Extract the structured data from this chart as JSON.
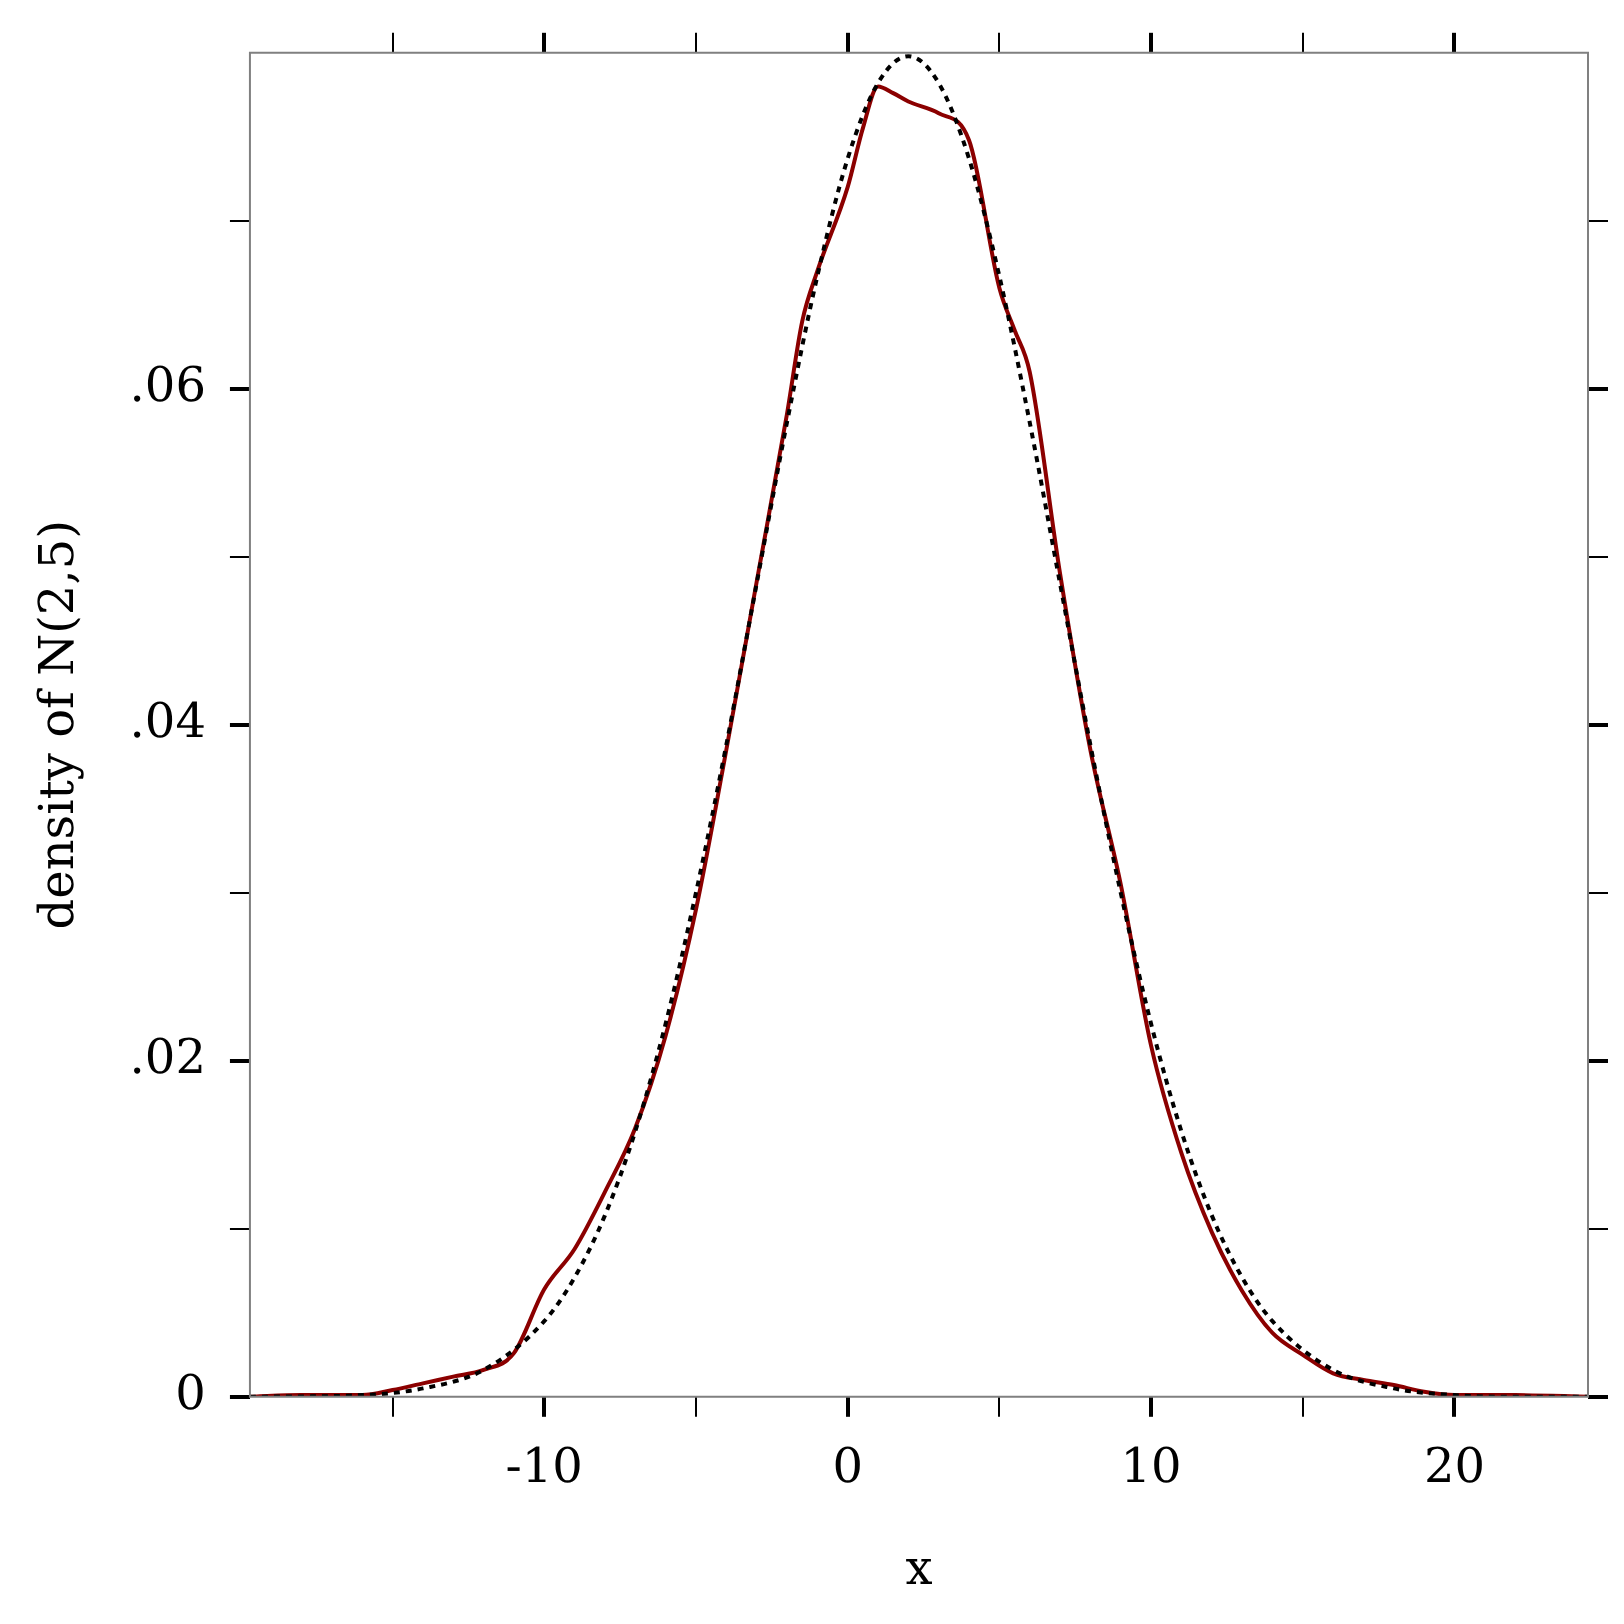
{
  "chart_data": {
    "type": "line",
    "xlabel": "x",
    "ylabel": "density of N(2,5)",
    "xlim": [
      -19.7,
      24.4
    ],
    "ylim": [
      0,
      0.08
    ],
    "xticks": [
      {
        "value": -15,
        "label": null
      },
      -10,
      {
        "value": -5,
        "label": null
      },
      0,
      {
        "value": 5,
        "label": null
      },
      10,
      {
        "value": 15,
        "label": null
      },
      20
    ],
    "yticks": [
      0,
      {
        "value": 0.01,
        "label": null
      },
      {
        "value": 0.02,
        "label": ".02"
      },
      {
        "value": 0.03,
        "label": null
      },
      {
        "value": 0.04,
        "label": ".04"
      },
      {
        "value": 0.05,
        "label": null
      },
      {
        "value": 0.06,
        "label": ".06"
      },
      {
        "value": 0.07,
        "label": null
      }
    ],
    "series": [
      {
        "color": "#000000",
        "line_style": "dotted",
        "x": [
          -19.7,
          -16,
          -14,
          -12,
          -10,
          -9,
          -8,
          -7,
          -6,
          -5,
          -4,
          -3,
          -2,
          -1,
          0,
          1,
          2,
          3,
          4,
          5,
          6,
          7,
          8,
          9,
          10,
          11,
          12,
          13,
          14,
          16,
          18,
          20,
          22,
          24.4
        ],
        "values": [
          0,
          0.0001,
          0.0005,
          0.0016,
          0.0045,
          0.0071,
          0.0108,
          0.0158,
          0.0222,
          0.03,
          0.0388,
          0.0484,
          0.058,
          0.0667,
          0.0737,
          0.0782,
          0.0798,
          0.0782,
          0.0737,
          0.0667,
          0.058,
          0.0484,
          0.0388,
          0.03,
          0.0222,
          0.0158,
          0.0108,
          0.0071,
          0.0045,
          0.0016,
          0.0005,
          0.0001,
          0,
          0
        ]
      },
      {
        "color": "#8b0000",
        "line_style": "solid",
        "x": [
          -19.7,
          -18,
          -16,
          -15,
          -14,
          -13,
          -12,
          -11,
          -10,
          -9,
          -8,
          -7,
          -6,
          -5,
          -4,
          -3,
          -2,
          -1.5,
          -1,
          0,
          0.5,
          1,
          1.5,
          2,
          3,
          4,
          5,
          5.5,
          6,
          7,
          8,
          9,
          10,
          11,
          12,
          13,
          14,
          15,
          16,
          17,
          18,
          19,
          20,
          22,
          24.4
        ],
        "values": [
          0,
          0.0001,
          0.0001,
          0.0004,
          0.0008,
          0.0012,
          0.0016,
          0.0026,
          0.0064,
          0.0088,
          0.0122,
          0.016,
          0.0215,
          0.029,
          0.0385,
          0.0485,
          0.0585,
          0.064,
          0.067,
          0.072,
          0.0755,
          0.078,
          0.0776,
          0.0771,
          0.0764,
          0.0748,
          0.066,
          0.0635,
          0.061,
          0.049,
          0.0385,
          0.0305,
          0.0209,
          0.0145,
          0.0098,
          0.0063,
          0.0038,
          0.0025,
          0.0014,
          0.001,
          0.0007,
          0.0003,
          0.0001,
          0.0001,
          0
        ]
      }
    ]
  }
}
